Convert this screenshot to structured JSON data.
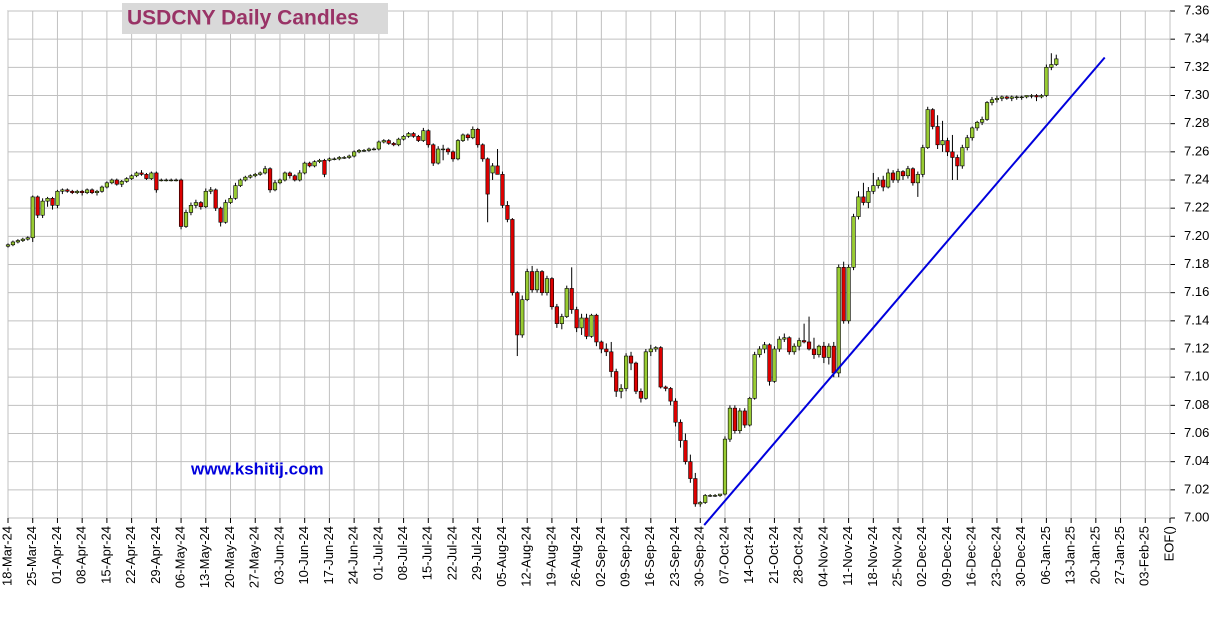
{
  "chart_data": {
    "type": "candlestick",
    "title": "USDCNY Daily Candles",
    "watermark": "www.kshitij.com",
    "up_color": "#99cc33",
    "down_color": "#dd0000",
    "grid": true,
    "ylim": [
      7.0,
      7.36
    ],
    "yticks": [
      {
        "value": 7.0,
        "label": "7.00"
      },
      7.02,
      7.04,
      7.06,
      7.08,
      {
        "value": 7.1,
        "label": "7.10"
      },
      7.12,
      7.14,
      7.16,
      7.18,
      {
        "value": 7.2,
        "label": "7.20"
      },
      7.22,
      7.24,
      7.26,
      7.28,
      {
        "value": 7.3,
        "label": "7.30"
      },
      7.32,
      7.34,
      7.36
    ],
    "x_labels": [
      "18-Mar-24",
      "25-Mar-24",
      "01-Apr-24",
      "08-Apr-24",
      "15-Apr-24",
      "22-Apr-24",
      "29-Apr-24",
      "06-May-24",
      "13-May-24",
      "20-May-24",
      "27-May-24",
      "03-Jun-24",
      "10-Jun-24",
      "17-Jun-24",
      "24-Jun-24",
      "01-Jul-24",
      "08-Jul-24",
      "15-Jul-24",
      "22-Jul-24",
      "29-Jul-24",
      "05-Aug-24",
      "12-Aug-24",
      "19-Aug-24",
      "26-Aug-24",
      "02-Sep-24",
      "09-Sep-24",
      "16-Sep-24",
      "23-Sep-24",
      "30-Sep-24",
      "07-Oct-24",
      "14-Oct-24",
      "21-Oct-24",
      "28-Oct-24",
      "04-Nov-24",
      "11-Nov-24",
      "18-Nov-24",
      "25-Nov-24",
      "02-Dec-24",
      "09-Dec-24",
      "16-Dec-24",
      "23-Dec-24",
      "30-Dec-24",
      "06-Jan-25",
      "13-Jan-25",
      "20-Jan-25",
      "27-Jan-25",
      "03-Feb-25",
      "EOF()"
    ],
    "trendline": {
      "color": "#0000dd",
      "x": [
        140.8,
        221.8
      ],
      "y": [
        6.995,
        7.327
      ]
    },
    "ohlc": [
      [
        7.193,
        7.195,
        7.192,
        7.194
      ],
      [
        7.194,
        7.197,
        7.193,
        7.196
      ],
      [
        7.196,
        7.198,
        7.195,
        7.197
      ],
      [
        7.197,
        7.199,
        7.196,
        7.198
      ],
      [
        7.198,
        7.2,
        7.197,
        7.199
      ],
      [
        7.199,
        7.229,
        7.196,
        7.228
      ],
      [
        7.228,
        7.229,
        7.213,
        7.215
      ],
      [
        7.215,
        7.227,
        7.213,
        7.225
      ],
      [
        7.225,
        7.228,
        7.221,
        7.227
      ],
      [
        7.227,
        7.228,
        7.219,
        7.222
      ],
      [
        7.222,
        7.233,
        7.22,
        7.232
      ],
      [
        7.232,
        7.234,
        7.23,
        7.233
      ],
      [
        7.233,
        7.234,
        7.231,
        7.232
      ],
      [
        7.232,
        7.233,
        7.23,
        7.231
      ],
      [
        7.231,
        7.233,
        7.23,
        7.232
      ],
      [
        7.232,
        7.233,
        7.229,
        7.231
      ],
      [
        7.231,
        7.234,
        7.23,
        7.233
      ],
      [
        7.233,
        7.234,
        7.23,
        7.231
      ],
      [
        7.231,
        7.233,
        7.229,
        7.232
      ],
      [
        7.232,
        7.236,
        7.231,
        7.235
      ],
      [
        7.235,
        7.239,
        7.234,
        7.238
      ],
      [
        7.238,
        7.241,
        7.237,
        7.24
      ],
      [
        7.24,
        7.241,
        7.236,
        7.237
      ],
      [
        7.237,
        7.24,
        7.235,
        7.239
      ],
      [
        7.239,
        7.242,
        7.238,
        7.241
      ],
      [
        7.241,
        7.244,
        7.24,
        7.243
      ],
      [
        7.243,
        7.246,
        7.242,
        7.245
      ],
      [
        7.245,
        7.247,
        7.243,
        7.244
      ],
      [
        7.244,
        7.245,
        7.24,
        7.241
      ],
      [
        7.241,
        7.246,
        7.24,
        7.245
      ],
      [
        7.245,
        7.246,
        7.231,
        7.233
      ],
      [
        7.24,
        7.241,
        7.239,
        7.24
      ],
      [
        7.24,
        7.241,
        7.239,
        7.24
      ],
      [
        7.24,
        7.241,
        7.239,
        7.24
      ],
      [
        7.24,
        7.241,
        7.239,
        7.24
      ],
      [
        7.24,
        7.241,
        7.205,
        7.207
      ],
      [
        7.207,
        7.219,
        7.206,
        7.217
      ],
      [
        7.217,
        7.224,
        7.215,
        7.222
      ],
      [
        7.222,
        7.226,
        7.22,
        7.224
      ],
      [
        7.224,
        7.225,
        7.219,
        7.221
      ],
      [
        7.221,
        7.234,
        7.22,
        7.232
      ],
      [
        7.232,
        7.235,
        7.23,
        7.233
      ],
      [
        7.233,
        7.234,
        7.218,
        7.22
      ],
      [
        7.22,
        7.221,
        7.207,
        7.21
      ],
      [
        7.21,
        7.226,
        7.209,
        7.224
      ],
      [
        7.224,
        7.229,
        7.223,
        7.227
      ],
      [
        7.227,
        7.238,
        7.226,
        7.236
      ],
      [
        7.236,
        7.241,
        7.235,
        7.24
      ],
      [
        7.24,
        7.243,
        7.239,
        7.242
      ],
      [
        7.242,
        7.244,
        7.241,
        7.243
      ],
      [
        7.243,
        7.245,
        7.242,
        7.244
      ],
      [
        7.244,
        7.246,
        7.243,
        7.245
      ],
      [
        7.245,
        7.25,
        7.244,
        7.248
      ],
      [
        7.248,
        7.249,
        7.231,
        7.233
      ],
      [
        7.233,
        7.24,
        7.232,
        7.238
      ],
      [
        7.238,
        7.241,
        7.237,
        7.24
      ],
      [
        7.24,
        7.246,
        7.239,
        7.245
      ],
      [
        7.245,
        7.246,
        7.241,
        7.243
      ],
      [
        7.243,
        7.244,
        7.239,
        7.24
      ],
      [
        7.24,
        7.247,
        7.239,
        7.245
      ],
      [
        7.245,
        7.253,
        7.244,
        7.252
      ],
      [
        7.252,
        7.253,
        7.249,
        7.25
      ],
      [
        7.25,
        7.254,
        7.249,
        7.253
      ],
      [
        7.253,
        7.255,
        7.252,
        7.254
      ],
      [
        7.254,
        7.255,
        7.242,
        7.244
      ],
      [
        7.254,
        7.256,
        7.253,
        7.255
      ],
      [
        7.255,
        7.256,
        7.254,
        7.255
      ],
      [
        7.255,
        7.257,
        7.254,
        7.256
      ],
      [
        7.256,
        7.257,
        7.255,
        7.256
      ],
      [
        7.256,
        7.258,
        7.255,
        7.257
      ],
      [
        7.257,
        7.261,
        7.256,
        7.26
      ],
      [
        7.26,
        7.262,
        7.259,
        7.261
      ],
      [
        7.261,
        7.262,
        7.26,
        7.261
      ],
      [
        7.261,
        7.263,
        7.26,
        7.262
      ],
      [
        7.262,
        7.263,
        7.261,
        7.262
      ],
      [
        7.262,
        7.268,
        7.261,
        7.267
      ],
      [
        7.267,
        7.269,
        7.266,
        7.268
      ],
      [
        7.268,
        7.269,
        7.265,
        7.266
      ],
      [
        7.266,
        7.267,
        7.264,
        7.265
      ],
      [
        7.265,
        7.27,
        7.264,
        7.269
      ],
      [
        7.269,
        7.272,
        7.268,
        7.271
      ],
      [
        7.271,
        7.274,
        7.27,
        7.273
      ],
      [
        7.273,
        7.274,
        7.27,
        7.271
      ],
      [
        7.271,
        7.272,
        7.267,
        7.268
      ],
      [
        7.268,
        7.277,
        7.267,
        7.275
      ],
      [
        7.275,
        7.276,
        7.263,
        7.265
      ],
      [
        7.265,
        7.266,
        7.25,
        7.252
      ],
      [
        7.252,
        7.264,
        7.251,
        7.262
      ],
      [
        7.262,
        7.265,
        7.254,
        7.262
      ],
      [
        7.262,
        7.263,
        7.258,
        7.26
      ],
      [
        7.26,
        7.261,
        7.253,
        7.255
      ],
      [
        7.255,
        7.269,
        7.254,
        7.268
      ],
      [
        7.268,
        7.273,
        7.267,
        7.272
      ],
      [
        7.272,
        7.273,
        7.268,
        7.27
      ],
      [
        7.27,
        7.278,
        7.269,
        7.276
      ],
      [
        7.276,
        7.277,
        7.263,
        7.265
      ],
      [
        7.265,
        7.266,
        7.253,
        7.255
      ],
      [
        7.255,
        7.256,
        7.21,
        7.23
      ],
      [
        7.245,
        7.252,
        7.24,
        7.25
      ],
      [
        7.25,
        7.262,
        7.244,
        7.244
      ],
      [
        7.244,
        7.246,
        7.22,
        7.222
      ],
      [
        7.222,
        7.225,
        7.21,
        7.212
      ],
      [
        7.212,
        7.213,
        7.158,
        7.16
      ],
      [
        7.16,
        7.161,
        7.115,
        7.13
      ],
      [
        7.13,
        7.158,
        7.128,
        7.155
      ],
      [
        7.155,
        7.177,
        7.154,
        7.175
      ],
      [
        7.175,
        7.179,
        7.16,
        7.162
      ],
      [
        7.162,
        7.177,
        7.16,
        7.175
      ],
      [
        7.175,
        7.176,
        7.158,
        7.16
      ],
      [
        7.16,
        7.172,
        7.158,
        7.17
      ],
      [
        7.17,
        7.171,
        7.148,
        7.15
      ],
      [
        7.15,
        7.152,
        7.135,
        7.138
      ],
      [
        7.138,
        7.145,
        7.134,
        7.143
      ],
      [
        7.143,
        7.165,
        7.142,
        7.163
      ],
      [
        7.163,
        7.178,
        7.145,
        7.148
      ],
      [
        7.148,
        7.15,
        7.132,
        7.135
      ],
      [
        7.135,
        7.145,
        7.13,
        7.142
      ],
      [
        7.142,
        7.145,
        7.127,
        7.129
      ],
      [
        7.129,
        7.145,
        7.128,
        7.144
      ],
      [
        7.144,
        7.145,
        7.122,
        7.125
      ],
      [
        7.125,
        7.126,
        7.117,
        7.12
      ],
      [
        7.12,
        7.124,
        7.115,
        7.118
      ],
      [
        7.118,
        7.125,
        7.1,
        7.104
      ],
      [
        7.104,
        7.106,
        7.086,
        7.09
      ],
      [
        7.09,
        7.095,
        7.085,
        7.092
      ],
      [
        7.092,
        7.117,
        7.09,
        7.115
      ],
      [
        7.115,
        7.118,
        7.105,
        7.11
      ],
      [
        7.11,
        7.111,
        7.088,
        7.09
      ],
      [
        7.09,
        7.092,
        7.082,
        7.085
      ],
      [
        7.085,
        7.12,
        7.084,
        7.118
      ],
      [
        7.118,
        7.123,
        7.115,
        7.12
      ],
      [
        7.12,
        7.122,
        7.118,
        7.121
      ],
      [
        7.121,
        7.122,
        7.092,
        7.093
      ],
      [
        7.093,
        7.094,
        7.09,
        7.092
      ],
      [
        7.092,
        7.093,
        7.08,
        7.083
      ],
      [
        7.083,
        7.085,
        7.065,
        7.068
      ],
      [
        7.068,
        7.07,
        7.05,
        7.055
      ],
      [
        7.055,
        7.06,
        7.038,
        7.04
      ],
      [
        7.04,
        7.045,
        7.025,
        7.028
      ],
      [
        7.028,
        7.032,
        7.008,
        7.01
      ],
      [
        7.01,
        7.012,
        7.008,
        7.011
      ],
      [
        7.011,
        7.017,
        7.01,
        7.016
      ],
      [
        7.016,
        7.017,
        7.015,
        7.016
      ],
      [
        7.016,
        7.017,
        7.015,
        7.016
      ],
      [
        7.016,
        7.017,
        7.015,
        7.017
      ],
      [
        7.017,
        7.058,
        7.016,
        7.056
      ],
      [
        7.056,
        7.08,
        7.054,
        7.078
      ],
      [
        7.078,
        7.08,
        7.06,
        7.062
      ],
      [
        7.062,
        7.078,
        7.06,
        7.076
      ],
      [
        7.076,
        7.078,
        7.064,
        7.066
      ],
      [
        7.066,
        7.086,
        7.065,
        7.085
      ],
      [
        7.085,
        7.118,
        7.084,
        7.116
      ],
      [
        7.116,
        7.122,
        7.114,
        7.12
      ],
      [
        7.12,
        7.125,
        7.117,
        7.123
      ],
      [
        7.123,
        7.124,
        7.094,
        7.097
      ],
      [
        7.097,
        7.122,
        7.096,
        7.12
      ],
      [
        7.12,
        7.129,
        7.118,
        7.127
      ],
      [
        7.127,
        7.131,
        7.125,
        7.128
      ],
      [
        7.128,
        7.129,
        7.116,
        7.118
      ],
      [
        7.118,
        7.124,
        7.116,
        7.122
      ],
      [
        7.122,
        7.128,
        7.119,
        7.126
      ],
      [
        7.126,
        7.138,
        7.124,
        7.125
      ],
      [
        7.125,
        7.143,
        7.119,
        7.12
      ],
      [
        7.12,
        7.128,
        7.113,
        7.116
      ],
      [
        7.116,
        7.123,
        7.114,
        7.122
      ],
      [
        7.122,
        7.125,
        7.11,
        7.114
      ],
      [
        7.114,
        7.124,
        7.109,
        7.122
      ],
      [
        7.122,
        7.125,
        7.1,
        7.103
      ],
      [
        7.103,
        7.18,
        7.1,
        7.178
      ],
      [
        7.178,
        7.182,
        7.138,
        7.14
      ],
      [
        7.14,
        7.18,
        7.138,
        7.178
      ],
      [
        7.178,
        7.216,
        7.176,
        7.214
      ],
      [
        7.214,
        7.232,
        7.212,
        7.228
      ],
      [
        7.228,
        7.238,
        7.222,
        7.224
      ],
      [
        7.224,
        7.235,
        7.22,
        7.232
      ],
      [
        7.232,
        7.245,
        7.23,
        7.236
      ],
      [
        7.236,
        7.242,
        7.234,
        7.24
      ],
      [
        7.24,
        7.243,
        7.232,
        7.235
      ],
      [
        7.235,
        7.248,
        7.234,
        7.245
      ],
      [
        7.245,
        7.247,
        7.238,
        7.24
      ],
      [
        7.24,
        7.248,
        7.238,
        7.246
      ],
      [
        7.246,
        7.247,
        7.24,
        7.243
      ],
      [
        7.243,
        7.25,
        7.241,
        7.248
      ],
      [
        7.248,
        7.249,
        7.236,
        7.238
      ],
      [
        7.238,
        7.246,
        7.228,
        7.244
      ],
      [
        7.244,
        7.265,
        7.242,
        7.263
      ],
      [
        7.263,
        7.292,
        7.262,
        7.29
      ],
      [
        7.29,
        7.291,
        7.276,
        7.278
      ],
      [
        7.278,
        7.286,
        7.262,
        7.265
      ],
      [
        7.265,
        7.282,
        7.26,
        7.268
      ],
      [
        7.268,
        7.27,
        7.257,
        7.26
      ],
      [
        7.26,
        7.272,
        7.24,
        7.256
      ],
      [
        7.256,
        7.258,
        7.24,
        7.25
      ],
      [
        7.25,
        7.265,
        7.248,
        7.263
      ],
      [
        7.263,
        7.272,
        7.261,
        7.27
      ],
      [
        7.27,
        7.278,
        7.268,
        7.277
      ],
      [
        7.277,
        7.282,
        7.275,
        7.281
      ],
      [
        7.281,
        7.285,
        7.279,
        7.283
      ],
      [
        7.283,
        7.296,
        7.282,
        7.295
      ],
      [
        7.295,
        7.299,
        7.293,
        7.297
      ],
      [
        7.297,
        7.3,
        7.295,
        7.298
      ],
      [
        7.298,
        7.3,
        7.296,
        7.299
      ],
      [
        7.299,
        7.3,
        7.297,
        7.298
      ],
      [
        7.298,
        7.3,
        7.296,
        7.299
      ],
      [
        7.299,
        7.3,
        7.297,
        7.299
      ],
      [
        7.299,
        7.3,
        7.297,
        7.299
      ],
      [
        7.299,
        7.3,
        7.298,
        7.3
      ],
      [
        7.3,
        7.301,
        7.298,
        7.3
      ],
      [
        7.3,
        7.301,
        7.296,
        7.299
      ],
      [
        7.299,
        7.301,
        7.298,
        7.3
      ],
      [
        7.3,
        7.322,
        7.299,
        7.32
      ],
      [
        7.32,
        7.33,
        7.318,
        7.322
      ],
      [
        7.322,
        7.329,
        7.321,
        7.326
      ]
    ]
  }
}
